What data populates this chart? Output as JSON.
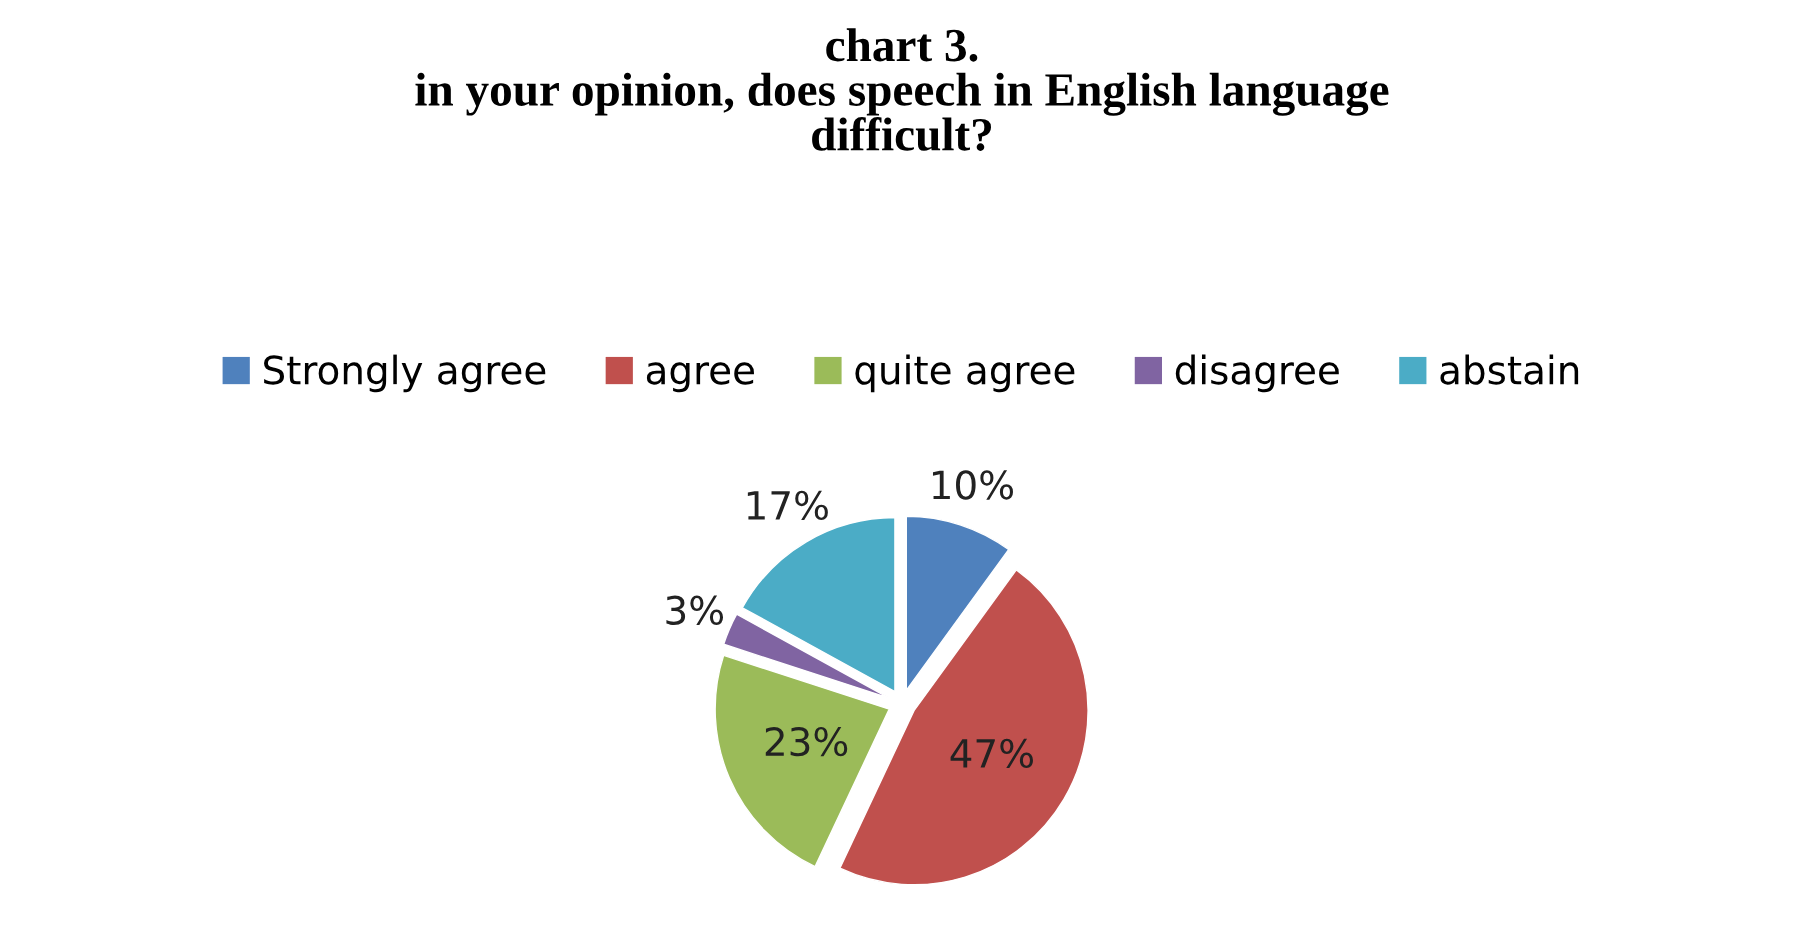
{
  "chart_data": {
    "type": "pie",
    "title": "chart 3.\nin your opinion, does speech in English language\ndifficult?",
    "categories": [
      "Strongly agree",
      "agree",
      "quite agree",
      "disagree",
      "abstain"
    ],
    "values": [
      10,
      47,
      23,
      3,
      17
    ],
    "colors": [
      "#4f81bd",
      "#c0504d",
      "#9bbb59",
      "#8064a2",
      "#4bacc6"
    ],
    "value_labels": [
      "10%",
      "47%",
      "23%",
      "3%",
      "17%"
    ],
    "legend": "top"
  }
}
